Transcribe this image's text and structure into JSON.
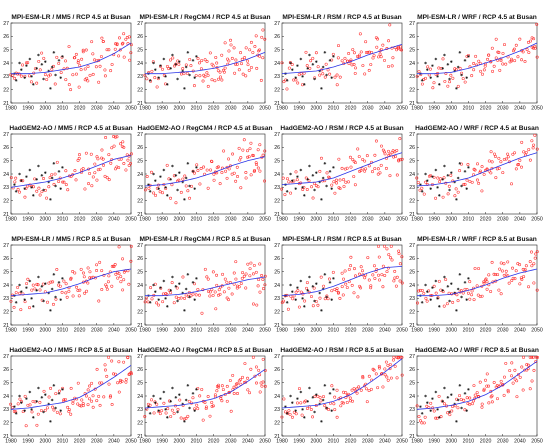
{
  "colors": {
    "projection": "#ff2a2a",
    "observation": "#111111",
    "trend": "#2a35e8"
  },
  "chart_data": {
    "type": "scatter",
    "layout": "4x4 grid of panels",
    "xlim": [
      1980,
      2050
    ],
    "ylim": [
      21,
      27
    ],
    "xticks": [
      1980,
      1990,
      2000,
      2010,
      2020,
      2030,
      2040,
      2050
    ],
    "yticks": [
      21,
      22,
      23,
      24,
      25,
      26,
      27
    ],
    "grid": false,
    "observations": {
      "marker": "black asterisk",
      "x": [
        1982,
        1983,
        1985,
        1986,
        1988,
        1989,
        1991,
        1992,
        1993,
        1995,
        1996,
        1998,
        1999,
        2000,
        2002,
        2003,
        2004,
        2005,
        2006,
        2008,
        2009,
        2010
      ],
      "y": [
        23.2,
        22.7,
        24.0,
        23.5,
        22.9,
        23.8,
        24.3,
        23.0,
        22.4,
        23.6,
        24.6,
        23.9,
        22.8,
        24.1,
        23.4,
        22.1,
        23.7,
        24.8,
        23.1,
        24.2,
        22.9,
        24.5
      ]
    },
    "panels": [
      {
        "title": "MPI-ESM-LR / MM5 / RCP 4.5 at Busan",
        "trend": {
          "x": [
            1980,
            1990,
            2000,
            2010,
            2020,
            2030,
            2040,
            2050
          ],
          "y": [
            23.2,
            23.2,
            23.3,
            23.5,
            23.7,
            24.1,
            24.7,
            25.5
          ]
        }
      },
      {
        "title": "MPI-ESM-LR / RegCM4 / RCP 4.5 at Busan",
        "trend": {
          "x": [
            1980,
            1990,
            2000,
            2010,
            2020,
            2030,
            2040,
            2050
          ],
          "y": [
            23.2,
            23.2,
            23.3,
            23.4,
            23.6,
            23.9,
            24.3,
            24.8
          ]
        }
      },
      {
        "title": "MPI-ESM-LR / RSM / RCP 4.5 at Busan",
        "trend": {
          "x": [
            1980,
            1990,
            2000,
            2010,
            2020,
            2030,
            2040,
            2050
          ],
          "y": [
            23.2,
            23.3,
            23.4,
            23.7,
            24.1,
            24.6,
            25.0,
            25.4
          ]
        }
      },
      {
        "title": "MPI-ESM-LR / WRF / RCP 4.5 at Busan",
        "trend": {
          "x": [
            1980,
            1990,
            2000,
            2010,
            2020,
            2030,
            2040,
            2050
          ],
          "y": [
            23.2,
            23.2,
            23.3,
            23.6,
            24.0,
            24.4,
            24.9,
            25.5
          ]
        }
      },
      {
        "title": "HadGEM2-AO / MM5 / RCP 4.5 at Busan",
        "trend": {
          "x": [
            1980,
            1990,
            2000,
            2010,
            2020,
            2030,
            2040,
            2050
          ],
          "y": [
            23.0,
            23.2,
            23.4,
            23.7,
            24.1,
            24.6,
            25.1,
            25.4
          ]
        }
      },
      {
        "title": "HadGEM2-AO / RegCM4 / RCP 4.5 at Busan",
        "trend": {
          "x": [
            1980,
            1990,
            2000,
            2010,
            2020,
            2030,
            2040,
            2050
          ],
          "y": [
            23.1,
            23.2,
            23.4,
            23.7,
            24.1,
            24.6,
            25.0,
            25.3
          ]
        }
      },
      {
        "title": "HadGEM2-AO / RSM / RCP 4.5 at Busan",
        "trend": {
          "x": [
            1980,
            1990,
            2000,
            2010,
            2020,
            2030,
            2040,
            2050
          ],
          "y": [
            23.2,
            23.3,
            23.4,
            23.7,
            24.2,
            24.7,
            25.2,
            25.6
          ]
        }
      },
      {
        "title": "HadGEM2-AO / WRF / RCP 4.5 at Busan",
        "trend": {
          "x": [
            1980,
            1990,
            2000,
            2010,
            2020,
            2030,
            2040,
            2050
          ],
          "y": [
            23.1,
            23.2,
            23.4,
            23.7,
            24.2,
            24.7,
            25.2,
            25.6
          ]
        }
      },
      {
        "title": "MPI-ESM-LR / MM5 / RCP 8.5 at Busan",
        "trend": {
          "x": [
            1980,
            1990,
            2000,
            2010,
            2020,
            2030,
            2040,
            2050
          ],
          "y": [
            23.2,
            23.3,
            23.4,
            23.7,
            24.1,
            24.6,
            25.0,
            25.2
          ]
        }
      },
      {
        "title": "MPI-ESM-LR / RegCM4 / RCP 8.5 at Busan",
        "trend": {
          "x": [
            1980,
            1990,
            2000,
            2010,
            2020,
            2030,
            2040,
            2050
          ],
          "y": [
            23.2,
            23.2,
            23.3,
            23.5,
            23.8,
            24.1,
            24.4,
            24.6
          ]
        }
      },
      {
        "title": "MPI-ESM-LR / RSM / RCP 8.5 at Busan",
        "trend": {
          "x": [
            1980,
            1990,
            2000,
            2010,
            2020,
            2030,
            2040,
            2050
          ],
          "y": [
            23.2,
            23.3,
            23.5,
            23.9,
            24.4,
            24.9,
            25.3,
            25.4
          ]
        }
      },
      {
        "title": "MPI-ESM-LR / WRF / RCP 8.5 at Busan",
        "trend": {
          "x": [
            1980,
            1990,
            2000,
            2010,
            2020,
            2030,
            2040,
            2050
          ],
          "y": [
            23.2,
            23.2,
            23.3,
            23.6,
            24.0,
            24.5,
            24.9,
            25.2
          ]
        }
      },
      {
        "title": "HadGEM2-AO / MM5 / RCP 8.5 at Busan",
        "trend": {
          "x": [
            1980,
            1990,
            2000,
            2010,
            2020,
            2030,
            2040,
            2050
          ],
          "y": [
            23.0,
            23.1,
            23.3,
            23.5,
            23.9,
            24.6,
            25.4,
            26.3
          ]
        }
      },
      {
        "title": "HadGEM2-AO / RegCM4 / RCP 8.5 at Busan",
        "trend": {
          "x": [
            1980,
            1990,
            2000,
            2010,
            2020,
            2030,
            2040,
            2050
          ],
          "y": [
            23.1,
            23.2,
            23.3,
            23.5,
            23.8,
            24.3,
            25.1,
            26.0
          ]
        }
      },
      {
        "title": "HadGEM2-AO / RSM / RCP 8.5 at Busan",
        "trend": {
          "x": [
            1980,
            1990,
            2000,
            2010,
            2020,
            2030,
            2040,
            2050
          ],
          "y": [
            23.1,
            23.2,
            23.3,
            23.6,
            24.1,
            24.9,
            25.8,
            26.8
          ]
        }
      },
      {
        "title": "HadGEM2-AO / WRF / RCP 8.5 at Busan",
        "trend": {
          "x": [
            1980,
            1990,
            2000,
            2010,
            2020,
            2030,
            2040,
            2050
          ],
          "y": [
            23.0,
            23.1,
            23.3,
            23.6,
            24.1,
            24.8,
            25.7,
            26.6
          ]
        }
      }
    ]
  }
}
